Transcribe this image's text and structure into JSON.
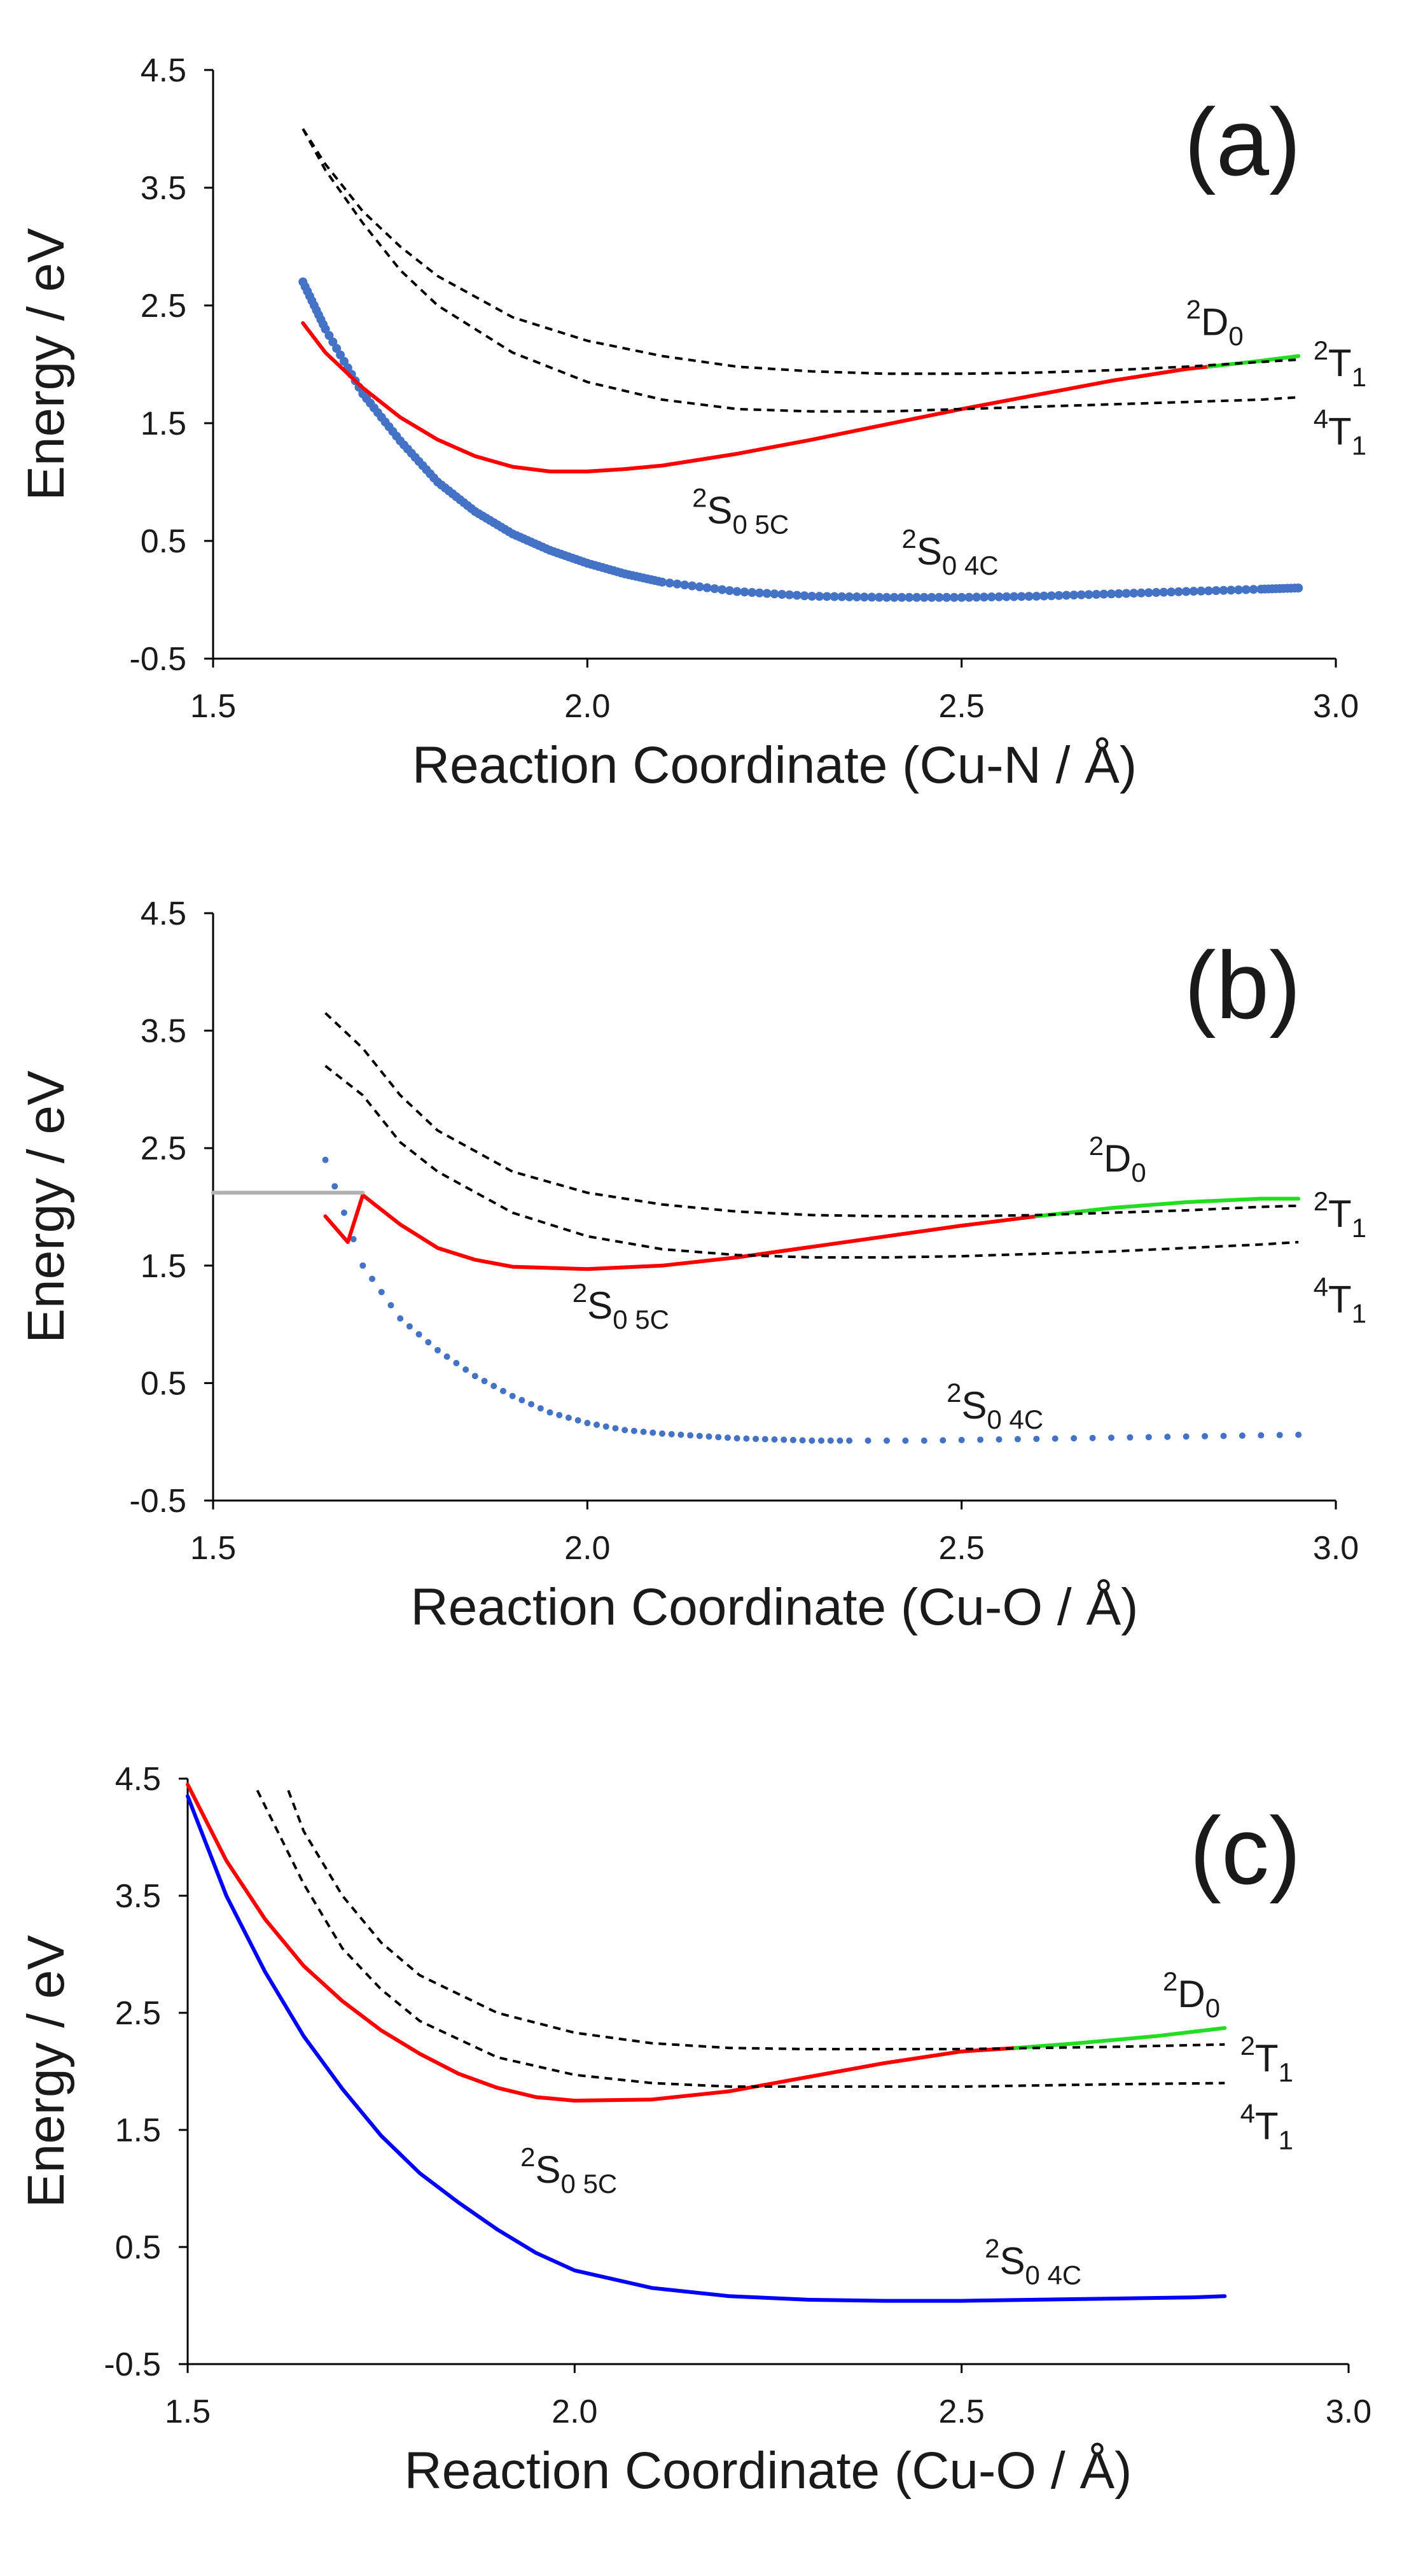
{
  "chart_data": [
    {
      "type": "line",
      "panel_label": "(a)",
      "xlabel": "Reaction Coordinate (Cu-N / Å)",
      "ylabel": "Energy / eV",
      "xlim": [
        1.5,
        3.0
      ],
      "ylim": [
        -0.5,
        4.5
      ],
      "x_ticks": [
        "1.5",
        "2.0",
        "2.5",
        "3.0"
      ],
      "y_ticks": [
        "4.5",
        "3.5",
        "2.5",
        "1.5",
        "0.5",
        "-0.5"
      ],
      "series": [
        {
          "name": "2S0 4C",
          "color": "#4472c4",
          "style": "dots",
          "x": [
            1.62,
            1.65,
            1.7,
            1.75,
            1.8,
            1.85,
            1.9,
            1.95,
            2.0,
            2.05,
            2.1,
            2.2,
            2.3,
            2.4,
            2.5,
            2.6,
            2.7,
            2.8,
            2.9,
            2.95
          ],
          "y": [
            2.7,
            2.3,
            1.75,
            1.35,
            1.0,
            0.75,
            0.56,
            0.42,
            0.31,
            0.22,
            0.15,
            0.07,
            0.03,
            0.02,
            0.02,
            0.03,
            0.05,
            0.07,
            0.09,
            0.1
          ]
        },
        {
          "name": "2S0 5C",
          "color": "#ff0000",
          "style": "solid",
          "x": [
            1.62,
            1.65,
            1.7,
            1.75,
            1.8,
            1.85,
            1.9,
            1.95,
            2.0,
            2.05,
            2.1,
            2.2,
            2.3,
            2.4,
            2.5,
            2.6,
            2.7,
            2.8,
            2.83
          ],
          "y": [
            2.35,
            2.1,
            1.8,
            1.55,
            1.36,
            1.22,
            1.13,
            1.09,
            1.09,
            1.11,
            1.14,
            1.24,
            1.36,
            1.49,
            1.62,
            1.74,
            1.86,
            1.96,
            1.98
          ]
        },
        {
          "name": "2D0",
          "color": "#22dd22",
          "style": "solid",
          "x": [
            2.83,
            2.9,
            2.95
          ],
          "y": [
            1.98,
            2.03,
            2.07
          ]
        },
        {
          "name": "2T1",
          "color": "#000000",
          "style": "dashed",
          "x": [
            1.62,
            1.65,
            1.7,
            1.75,
            1.8,
            1.9,
            2.0,
            2.1,
            2.2,
            2.3,
            2.4,
            2.5,
            2.6,
            2.7,
            2.8,
            2.9,
            2.95
          ],
          "y": [
            4.0,
            3.7,
            3.3,
            3.0,
            2.75,
            2.4,
            2.2,
            2.07,
            1.98,
            1.94,
            1.92,
            1.92,
            1.93,
            1.95,
            1.98,
            2.02,
            2.04
          ]
        },
        {
          "name": "4T1",
          "color": "#000000",
          "style": "dashed",
          "x": [
            1.62,
            1.65,
            1.7,
            1.75,
            1.8,
            1.9,
            2.0,
            2.1,
            2.2,
            2.3,
            2.4,
            2.5,
            2.6,
            2.7,
            2.8,
            2.9,
            2.95
          ],
          "y": [
            4.0,
            3.65,
            3.2,
            2.8,
            2.5,
            2.1,
            1.85,
            1.7,
            1.62,
            1.6,
            1.6,
            1.62,
            1.64,
            1.66,
            1.68,
            1.7,
            1.72
          ]
        }
      ],
      "labels": [
        {
          "base": "S",
          "sup": "2",
          "sub": "0 5C",
          "x": 2.14,
          "y": 0.65
        },
        {
          "base": "S",
          "sup": "2",
          "sub": "0 4C",
          "x": 2.42,
          "y": 0.3
        },
        {
          "base": "D",
          "sup": "2",
          "sub": "0",
          "x": 2.8,
          "y": 2.25
        },
        {
          "base": "T",
          "sup": "2",
          "sub": "1",
          "x": 2.97,
          "y": 1.9
        },
        {
          "base": "T",
          "sup": "4",
          "sub": "1",
          "x": 2.97,
          "y": 1.32
        }
      ]
    },
    {
      "type": "line",
      "panel_label": "(b)",
      "xlabel": "Reaction Coordinate (Cu-O / Å)",
      "ylabel": "Energy / eV",
      "xlim": [
        1.5,
        3.0
      ],
      "ylim": [
        -0.5,
        4.5
      ],
      "x_ticks": [
        "1.5",
        "2.0",
        "2.5",
        "3.0"
      ],
      "y_ticks": [
        "4.5",
        "3.5",
        "2.5",
        "1.5",
        "0.5",
        "-0.5"
      ],
      "series": [
        {
          "name": "2S0 4C",
          "color": "#4472c4",
          "style": "dots",
          "x": [
            1.65,
            1.7,
            1.75,
            1.8,
            1.85,
            1.9,
            1.95,
            2.0,
            2.05,
            2.1,
            2.15,
            2.2,
            2.25,
            2.3,
            2.35,
            2.45,
            2.55,
            2.65,
            2.75,
            2.85,
            2.95
          ],
          "y": [
            2.4,
            1.5,
            1.05,
            0.78,
            0.56,
            0.39,
            0.25,
            0.16,
            0.1,
            0.07,
            0.05,
            0.03,
            0.02,
            0.01,
            0.01,
            0.01,
            0.02,
            0.03,
            0.04,
            0.05,
            0.06
          ]
        },
        {
          "name": "2S0 5C",
          "color": "#ff0000",
          "style": "solid",
          "x": [
            1.65,
            1.68,
            1.7,
            1.75,
            1.8,
            1.85,
            1.9,
            2.0,
            2.1,
            2.2,
            2.3,
            2.4,
            2.5,
            2.6
          ],
          "y": [
            1.92,
            1.7,
            2.1,
            1.85,
            1.65,
            1.55,
            1.49,
            1.47,
            1.5,
            1.57,
            1.66,
            1.75,
            1.84,
            1.92
          ]
        },
        {
          "name": "2D0",
          "color": "#22dd22",
          "style": "solid",
          "x": [
            2.6,
            2.7,
            2.8,
            2.9,
            2.95
          ],
          "y": [
            1.92,
            1.99,
            2.04,
            2.07,
            2.07
          ]
        },
        {
          "name": "2T1",
          "color": "#000000",
          "style": "dashed",
          "x": [
            1.65,
            1.7,
            1.75,
            1.8,
            1.9,
            2.0,
            2.1,
            2.2,
            2.3,
            2.4,
            2.5,
            2.6,
            2.7,
            2.8,
            2.9,
            2.95
          ],
          "y": [
            3.65,
            3.35,
            2.95,
            2.65,
            2.3,
            2.12,
            2.02,
            1.96,
            1.93,
            1.92,
            1.92,
            1.93,
            1.95,
            1.97,
            2.0,
            2.01
          ]
        },
        {
          "name": "4T1",
          "color": "#000000",
          "style": "dashed",
          "x": [
            1.65,
            1.7,
            1.75,
            1.8,
            1.9,
            2.0,
            2.1,
            2.2,
            2.3,
            2.4,
            2.5,
            2.6,
            2.7,
            2.8,
            2.9,
            2.95
          ],
          "y": [
            3.2,
            2.95,
            2.55,
            2.3,
            1.95,
            1.75,
            1.64,
            1.59,
            1.57,
            1.57,
            1.58,
            1.6,
            1.62,
            1.65,
            1.68,
            1.7
          ]
        },
        {
          "name": "reference",
          "color": "#b0b0b0",
          "style": "solid",
          "x": [
            1.5,
            1.7
          ],
          "y": [
            2.12,
            2.12
          ]
        }
      ],
      "labels": [
        {
          "base": "S",
          "sup": "2",
          "sub": "0 5C",
          "x": 1.98,
          "y": 1.05
        },
        {
          "base": "S",
          "sup": "2",
          "sub": "0 4C",
          "x": 2.48,
          "y": 0.2
        },
        {
          "base": "D",
          "sup": "2",
          "sub": "0",
          "x": 2.67,
          "y": 2.3
        },
        {
          "base": "T",
          "sup": "2",
          "sub": "1",
          "x": 2.97,
          "y": 1.83
        },
        {
          "base": "T",
          "sup": "4",
          "sub": "1",
          "x": 2.97,
          "y": 1.1
        }
      ]
    },
    {
      "type": "line",
      "panel_label": "(c)",
      "xlabel": "Reaction Coordinate (Cu-O / Å)",
      "ylabel": "Energy / eV",
      "xlim": [
        1.5,
        3.0
      ],
      "ylim": [
        -0.5,
        4.5
      ],
      "x_ticks": [
        "1.5",
        "2.0",
        "2.5",
        "3.0"
      ],
      "y_ticks": [
        "4.5",
        "3.5",
        "2.5",
        "1.5",
        "0.5",
        "-0.5"
      ],
      "series": [
        {
          "name": "2S0 4C",
          "color": "#0000ff",
          "style": "solid",
          "x": [
            1.5,
            1.55,
            1.6,
            1.65,
            1.7,
            1.75,
            1.8,
            1.85,
            1.9,
            1.95,
            2.0,
            2.1,
            2.2,
            2.3,
            2.4,
            2.5,
            2.6,
            2.7,
            2.8,
            2.84
          ],
          "y": [
            4.35,
            3.5,
            2.85,
            2.3,
            1.85,
            1.45,
            1.13,
            0.88,
            0.65,
            0.45,
            0.3,
            0.15,
            0.08,
            0.05,
            0.04,
            0.04,
            0.05,
            0.06,
            0.07,
            0.08
          ]
        },
        {
          "name": "2S0 5C",
          "color": "#ff0000",
          "style": "solid",
          "x": [
            1.5,
            1.55,
            1.6,
            1.65,
            1.7,
            1.75,
            1.8,
            1.85,
            1.9,
            1.95,
            2.0,
            2.1,
            2.2,
            2.3,
            2.4,
            2.5,
            2.57
          ],
          "y": [
            4.45,
            3.8,
            3.3,
            2.9,
            2.6,
            2.35,
            2.15,
            1.98,
            1.86,
            1.78,
            1.75,
            1.76,
            1.83,
            1.95,
            2.07,
            2.17,
            2.2
          ]
        },
        {
          "name": "2D0",
          "color": "#22dd22",
          "style": "solid",
          "x": [
            2.57,
            2.65,
            2.75,
            2.84
          ],
          "y": [
            2.2,
            2.24,
            2.3,
            2.37
          ]
        },
        {
          "name": "2T1",
          "color": "#000000",
          "style": "dashed",
          "x": [
            1.63,
            1.65,
            1.7,
            1.75,
            1.8,
            1.9,
            2.0,
            2.1,
            2.2,
            2.3,
            2.4,
            2.5,
            2.6,
            2.7,
            2.84
          ],
          "y": [
            4.4,
            4.05,
            3.5,
            3.1,
            2.82,
            2.5,
            2.33,
            2.24,
            2.2,
            2.19,
            2.19,
            2.19,
            2.2,
            2.21,
            2.23
          ]
        },
        {
          "name": "4T1",
          "color": "#000000",
          "style": "dashed",
          "x": [
            1.59,
            1.65,
            1.7,
            1.75,
            1.8,
            1.9,
            2.0,
            2.1,
            2.2,
            2.3,
            2.4,
            2.5,
            2.6,
            2.7,
            2.84
          ],
          "y": [
            4.4,
            3.6,
            3.05,
            2.7,
            2.43,
            2.12,
            1.97,
            1.9,
            1.87,
            1.87,
            1.87,
            1.87,
            1.88,
            1.89,
            1.9
          ]
        }
      ],
      "labels": [
        {
          "base": "S",
          "sup": "2",
          "sub": "0 5C",
          "x": 1.93,
          "y": 1.05
        },
        {
          "base": "S",
          "sup": "2",
          "sub": "0 4C",
          "x": 2.53,
          "y": 0.27
        },
        {
          "base": "D",
          "sup": "2",
          "sub": "0",
          "x": 2.76,
          "y": 2.55
        },
        {
          "base": "T",
          "sup": "2",
          "sub": "1",
          "x": 2.86,
          "y": 2.0
        },
        {
          "base": "T",
          "sup": "4",
          "sub": "1",
          "x": 2.86,
          "y": 1.42
        }
      ]
    }
  ]
}
